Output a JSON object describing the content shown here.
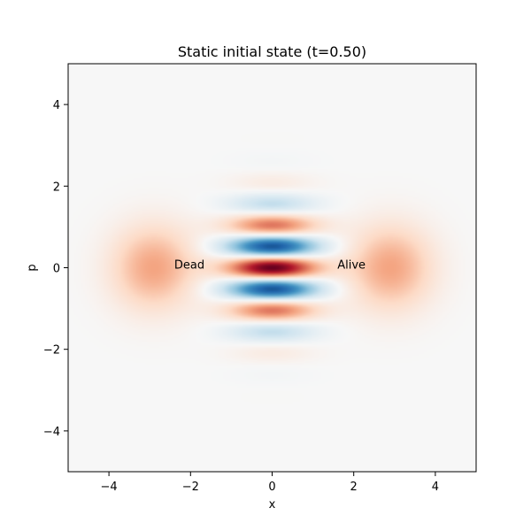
{
  "chart_data": {
    "type": "heatmap",
    "title": "Static initial state (t=0.50)",
    "xlabel": "x",
    "ylabel": "p",
    "xlim": [
      -5,
      5
    ],
    "ylim": [
      -5,
      5
    ],
    "xticks": [
      -4,
      -2,
      0,
      2,
      4
    ],
    "yticks": [
      -4,
      -2,
      0,
      2,
      4
    ],
    "colormap": "RdBu_r",
    "grid": false,
    "components": {
      "lobe_centers_x": [
        -2.9,
        2.9
      ],
      "lobe_width": 0.72,
      "lobe_value": 0.4,
      "fringe_amplitude": 1.0,
      "fringe_x_width": 0.75,
      "fringe_p_width": 0.95,
      "fringe_frequency": 5.8
    },
    "annotations": [
      {
        "text": "Dead",
        "x": -2.4,
        "y": 0.0
      },
      {
        "text": "Alive",
        "x": 1.6,
        "y": 0.0
      }
    ]
  }
}
